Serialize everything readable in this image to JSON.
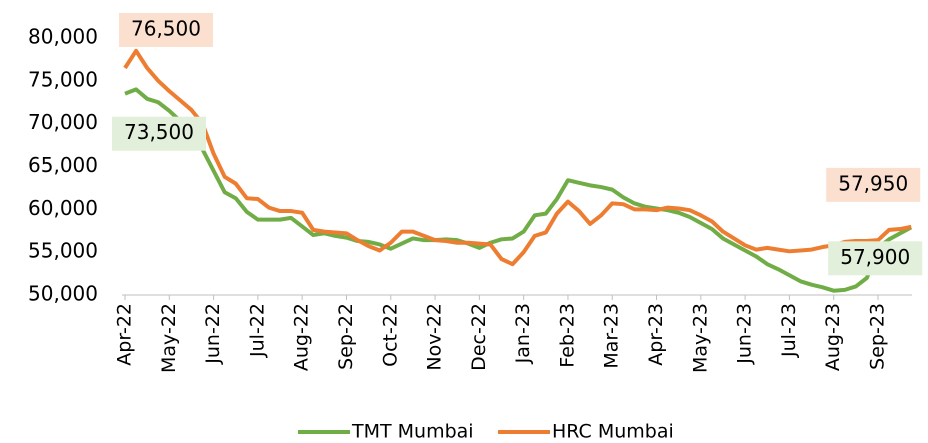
{
  "chart_data": {
    "type": "line",
    "categories": [
      "Apr-22",
      null,
      null,
      null,
      "May-22",
      null,
      null,
      null,
      "Jun-22",
      null,
      null,
      null,
      "Jul-22",
      null,
      null,
      null,
      "Aug-22",
      null,
      null,
      null,
      "Sep-22",
      null,
      null,
      null,
      "Oct-22",
      null,
      null,
      null,
      "Nov-22",
      null,
      null,
      null,
      "Dec-22",
      null,
      null,
      null,
      "Jan-23",
      null,
      null,
      null,
      "Feb-23",
      null,
      null,
      null,
      "Mar-23",
      null,
      null,
      null,
      "Apr-23",
      null,
      null,
      null,
      "May-23",
      null,
      null,
      null,
      "Jun-23",
      null,
      null,
      null,
      "Jul-23",
      null,
      null,
      null,
      "Aug-23",
      null,
      null,
      null,
      "Sep-23",
      null,
      null,
      null
    ],
    "series": [
      {
        "name": "TMT Mumbai",
        "color": "#70ad47",
        "label_color": "#e2efda",
        "values": [
          73500,
          74000,
          72900,
          72500,
          71500,
          70300,
          68800,
          67000,
          64500,
          62000,
          61300,
          59700,
          58800,
          58800,
          58800,
          59000,
          58000,
          57000,
          57200,
          56900,
          56700,
          56300,
          56200,
          55900,
          55400,
          56000,
          56600,
          56400,
          56400,
          56500,
          56400,
          56000,
          55500,
          56100,
          56500,
          56600,
          57400,
          59300,
          59500,
          61200,
          63400,
          63100,
          62800,
          62600,
          62300,
          61400,
          60700,
          60300,
          60100,
          59900,
          59600,
          59100,
          58400,
          57700,
          56600,
          55900,
          55200,
          54500,
          53600,
          53000,
          52300,
          51600,
          51200,
          50900,
          50500,
          50600,
          51000,
          52000,
          55500,
          56500,
          57200,
          57900
        ],
        "value_labels": [
          "73,500",
          null,
          null,
          null,
          null,
          null,
          null,
          null,
          null,
          null,
          null,
          null,
          null,
          null,
          null,
          null,
          null,
          null,
          null,
          null,
          null,
          null,
          null,
          null,
          null,
          null,
          null,
          null,
          null,
          null,
          null,
          null,
          null,
          null,
          null,
          null,
          null,
          null,
          null,
          null,
          null,
          null,
          null,
          null,
          null,
          null,
          null,
          null,
          null,
          null,
          null,
          null,
          null,
          null,
          null,
          null,
          null,
          null,
          null,
          null,
          null,
          null,
          null,
          null,
          null,
          null,
          null,
          null,
          null,
          null,
          null,
          "57,900"
        ]
      },
      {
        "name": "HRC Mumbai",
        "color": "#ed7d31",
        "label_color": "#fbe0d0",
        "values": [
          76500,
          78500,
          76500,
          75000,
          73800,
          72700,
          71600,
          70000,
          66500,
          63800,
          63000,
          61300,
          61200,
          60200,
          59800,
          59800,
          59600,
          57600,
          57400,
          57300,
          57200,
          56400,
          55700,
          55200,
          56100,
          57400,
          57400,
          56900,
          56400,
          56300,
          56100,
          56100,
          56000,
          55900,
          54200,
          53600,
          55000,
          56900,
          57300,
          59500,
          60900,
          59800,
          58300,
          59300,
          60700,
          60600,
          60000,
          60000,
          59900,
          60200,
          60100,
          59900,
          59300,
          58600,
          57400,
          56600,
          55800,
          55300,
          55500,
          55300,
          55100,
          55200,
          55300,
          55600,
          55800,
          56200,
          56300,
          56300,
          56400,
          57600,
          57700,
          57950
        ],
        "value_labels": [
          "76,500",
          null,
          null,
          null,
          null,
          null,
          null,
          null,
          null,
          null,
          null,
          null,
          null,
          null,
          null,
          null,
          null,
          null,
          null,
          null,
          null,
          null,
          null,
          null,
          null,
          null,
          null,
          null,
          null,
          null,
          null,
          null,
          null,
          null,
          null,
          null,
          null,
          null,
          null,
          null,
          null,
          null,
          null,
          null,
          null,
          null,
          null,
          null,
          null,
          null,
          null,
          null,
          null,
          null,
          null,
          null,
          null,
          null,
          null,
          null,
          null,
          null,
          null,
          null,
          null,
          null,
          null,
          null,
          null,
          null,
          null,
          "57,950"
        ]
      }
    ],
    "ylim": [
      50000,
      80000
    ],
    "yticks": [
      {
        "value": 50000,
        "label": "50,000"
      },
      {
        "value": 55000,
        "label": "55,000"
      },
      {
        "value": 60000,
        "label": "60,000"
      },
      {
        "value": 65000,
        "label": "65,000"
      },
      {
        "value": 70000,
        "label": "70,000"
      },
      {
        "value": 75000,
        "label": "75,000"
      },
      {
        "value": 80000,
        "label": "80,000"
      }
    ],
    "grid": false,
    "legend": "bottom"
  }
}
